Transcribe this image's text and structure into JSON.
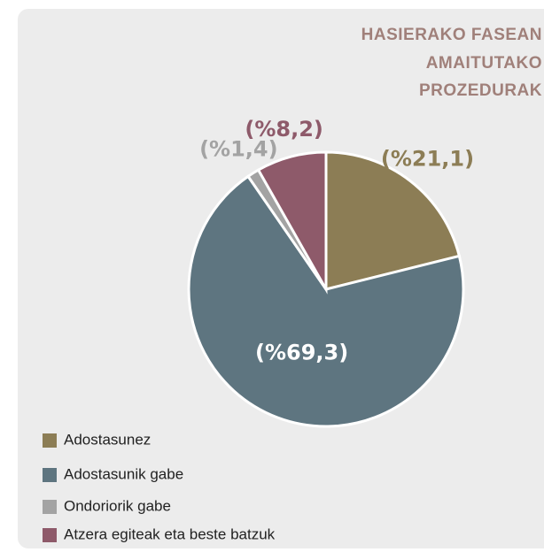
{
  "chart_data": {
    "type": "pie",
    "title": [
      "HASIERAKO FASEAN",
      "AMAITUTAKO",
      "PROZEDURAK"
    ],
    "categories": [
      "Adostasunez",
      "Adostasunik gabe",
      "Ondoriorik gabe",
      "Atzera egiteak eta beste batzuk"
    ],
    "values": [
      21.1,
      69.3,
      1.4,
      8.2
    ],
    "value_labels": [
      "(%21,1)",
      "(%69,3)",
      "(%1,4)",
      "(%8,2)"
    ],
    "colors": [
      "#8c7d55",
      "#5e7580",
      "#a3a3a3",
      "#8e5a6a"
    ],
    "label_colors": [
      "#8c7d55",
      "#ffffff",
      "#a3a3a3",
      "#8e5a6a"
    ],
    "legend": "bottom-left"
  }
}
